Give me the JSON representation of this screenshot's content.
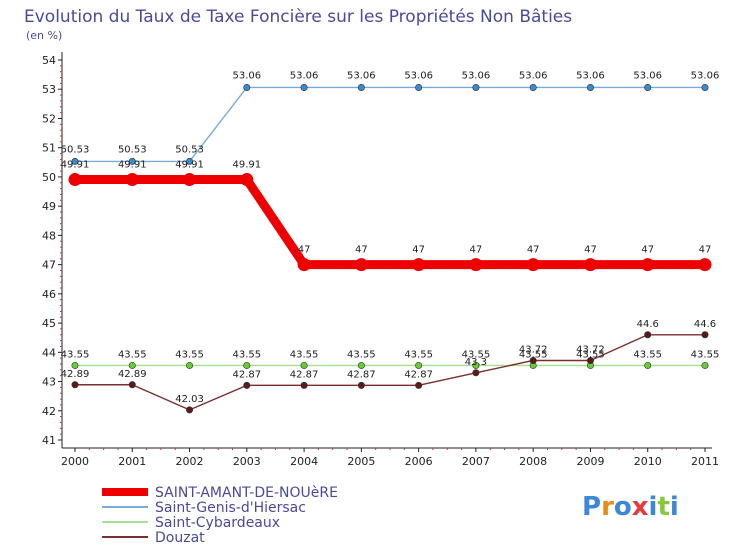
{
  "chart_data": {
    "type": "line",
    "title": "Evolution du Taux de Taxe Foncière sur les Propriétés Non Bâties",
    "subtitle": "(en %)",
    "x": [
      "2000",
      "2001",
      "2002",
      "2003",
      "2004",
      "2005",
      "2006",
      "2007",
      "2008",
      "2009",
      "2010",
      "2011"
    ],
    "ylim": [
      41,
      54
    ],
    "yticks": [
      "41",
      "42",
      "43",
      "44",
      "45",
      "46",
      "47",
      "48",
      "49",
      "50",
      "51",
      "52",
      "53",
      "54"
    ],
    "grid": false,
    "legend_position": "bottom-left",
    "series": [
      {
        "name": "Saint-Genis-d'Hiersac",
        "color": "#7aaad8",
        "point_color": "#3a8ad0",
        "values": [
          50.53,
          50.53,
          50.53,
          53.06,
          53.06,
          53.06,
          53.06,
          53.06,
          53.06,
          53.06,
          53.06,
          53.06
        ],
        "labels": [
          "50.53",
          "50.53",
          "50.53",
          "53.06",
          "53.06",
          "53.06",
          "53.06",
          "53.06",
          "53.06",
          "53.06",
          "53.06",
          "53.06"
        ]
      },
      {
        "name": "Saint-Cybardeaux",
        "color": "#a6e08a",
        "point_color": "#66cc33",
        "values": [
          43.55,
          43.55,
          43.55,
          43.55,
          43.55,
          43.55,
          43.55,
          43.55,
          43.55,
          43.55,
          43.55,
          43.55
        ],
        "labels": [
          "43.55",
          "43.55",
          "43.55",
          "43.55",
          "43.55",
          "43.55",
          "43.55",
          "43.55",
          "43.55",
          "43.55",
          "43.55",
          "43.55"
        ]
      },
      {
        "name": "Douzat",
        "color": "#7a2e2e",
        "point_color": "#5a1a1a",
        "values": [
          42.89,
          42.89,
          42.03,
          42.87,
          42.87,
          42.87,
          42.87,
          43.3,
          43.72,
          43.72,
          44.6,
          44.6
        ],
        "labels": [
          "42.89",
          "42.89",
          "42.03",
          "42.87",
          "42.87",
          "42.87",
          "42.87",
          "43.3",
          "43.72",
          "43.72",
          "44.6",
          "44.6"
        ]
      },
      {
        "name": "SAINT-AMANT-DE-NOUèRE",
        "color": "#ee0000",
        "point_color": "#ee0000",
        "bold": true,
        "values": [
          49.91,
          49.91,
          49.91,
          49.91,
          47,
          47,
          47,
          47,
          47,
          47,
          47,
          47
        ],
        "labels": [
          "49.91",
          "49.91",
          "49.91",
          "49.91",
          "47",
          "47",
          "47",
          "47",
          "47",
          "47",
          "47",
          "47"
        ]
      }
    ],
    "legend": [
      {
        "name": "SAINT-AMANT-DE-NOUèRE",
        "color": "#ee0000",
        "bold": true
      },
      {
        "name": "Saint-Genis-d'Hiersac",
        "color": "#7aaad8",
        "bold": false
      },
      {
        "name": "Saint-Cybardeaux",
        "color": "#a6e08a",
        "bold": false
      },
      {
        "name": "Douzat",
        "color": "#7a2e2e",
        "bold": false
      }
    ]
  },
  "logo": {
    "text": "Proxiti",
    "letters": [
      "P",
      "r",
      "o",
      "x",
      "i",
      "t",
      "i"
    ],
    "colors": [
      "#3a88d8",
      "#e88a1a",
      "#3a88d8",
      "#e83a3a",
      "#3a88d8",
      "#88c83a",
      "#3a88d8"
    ]
  }
}
